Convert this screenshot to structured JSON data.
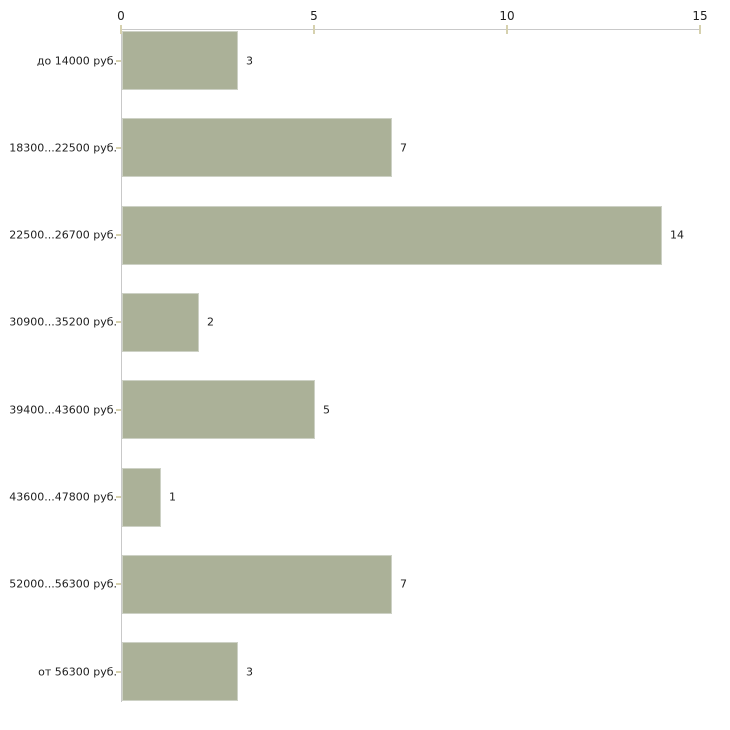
{
  "chart_data": {
    "type": "bar",
    "orientation": "horizontal",
    "title": "",
    "xlabel": "",
    "ylabel": "",
    "categories": [
      "до 14000 руб.",
      "18300...22500 руб.",
      "22500...26700 руб.",
      "30900...35200 руб.",
      "39400...43600 руб.",
      "43600...47800 руб.",
      "52000...56300 руб.",
      "от 56300 руб."
    ],
    "values": [
      3,
      7,
      14,
      2,
      5,
      1,
      7,
      3
    ],
    "value_labels_shown": true,
    "xlim": [
      0,
      15
    ],
    "x_ticks": [
      0,
      5,
      10,
      15
    ],
    "grid": false,
    "legend": "none",
    "colors": {
      "bar_fill": "#abb198",
      "bar_border": "#cdd1c5",
      "axis_line": "#c9c9c9",
      "tick_mark": "#d6d1ae",
      "text": "#1f1f1f",
      "background": "#ffffff"
    }
  }
}
